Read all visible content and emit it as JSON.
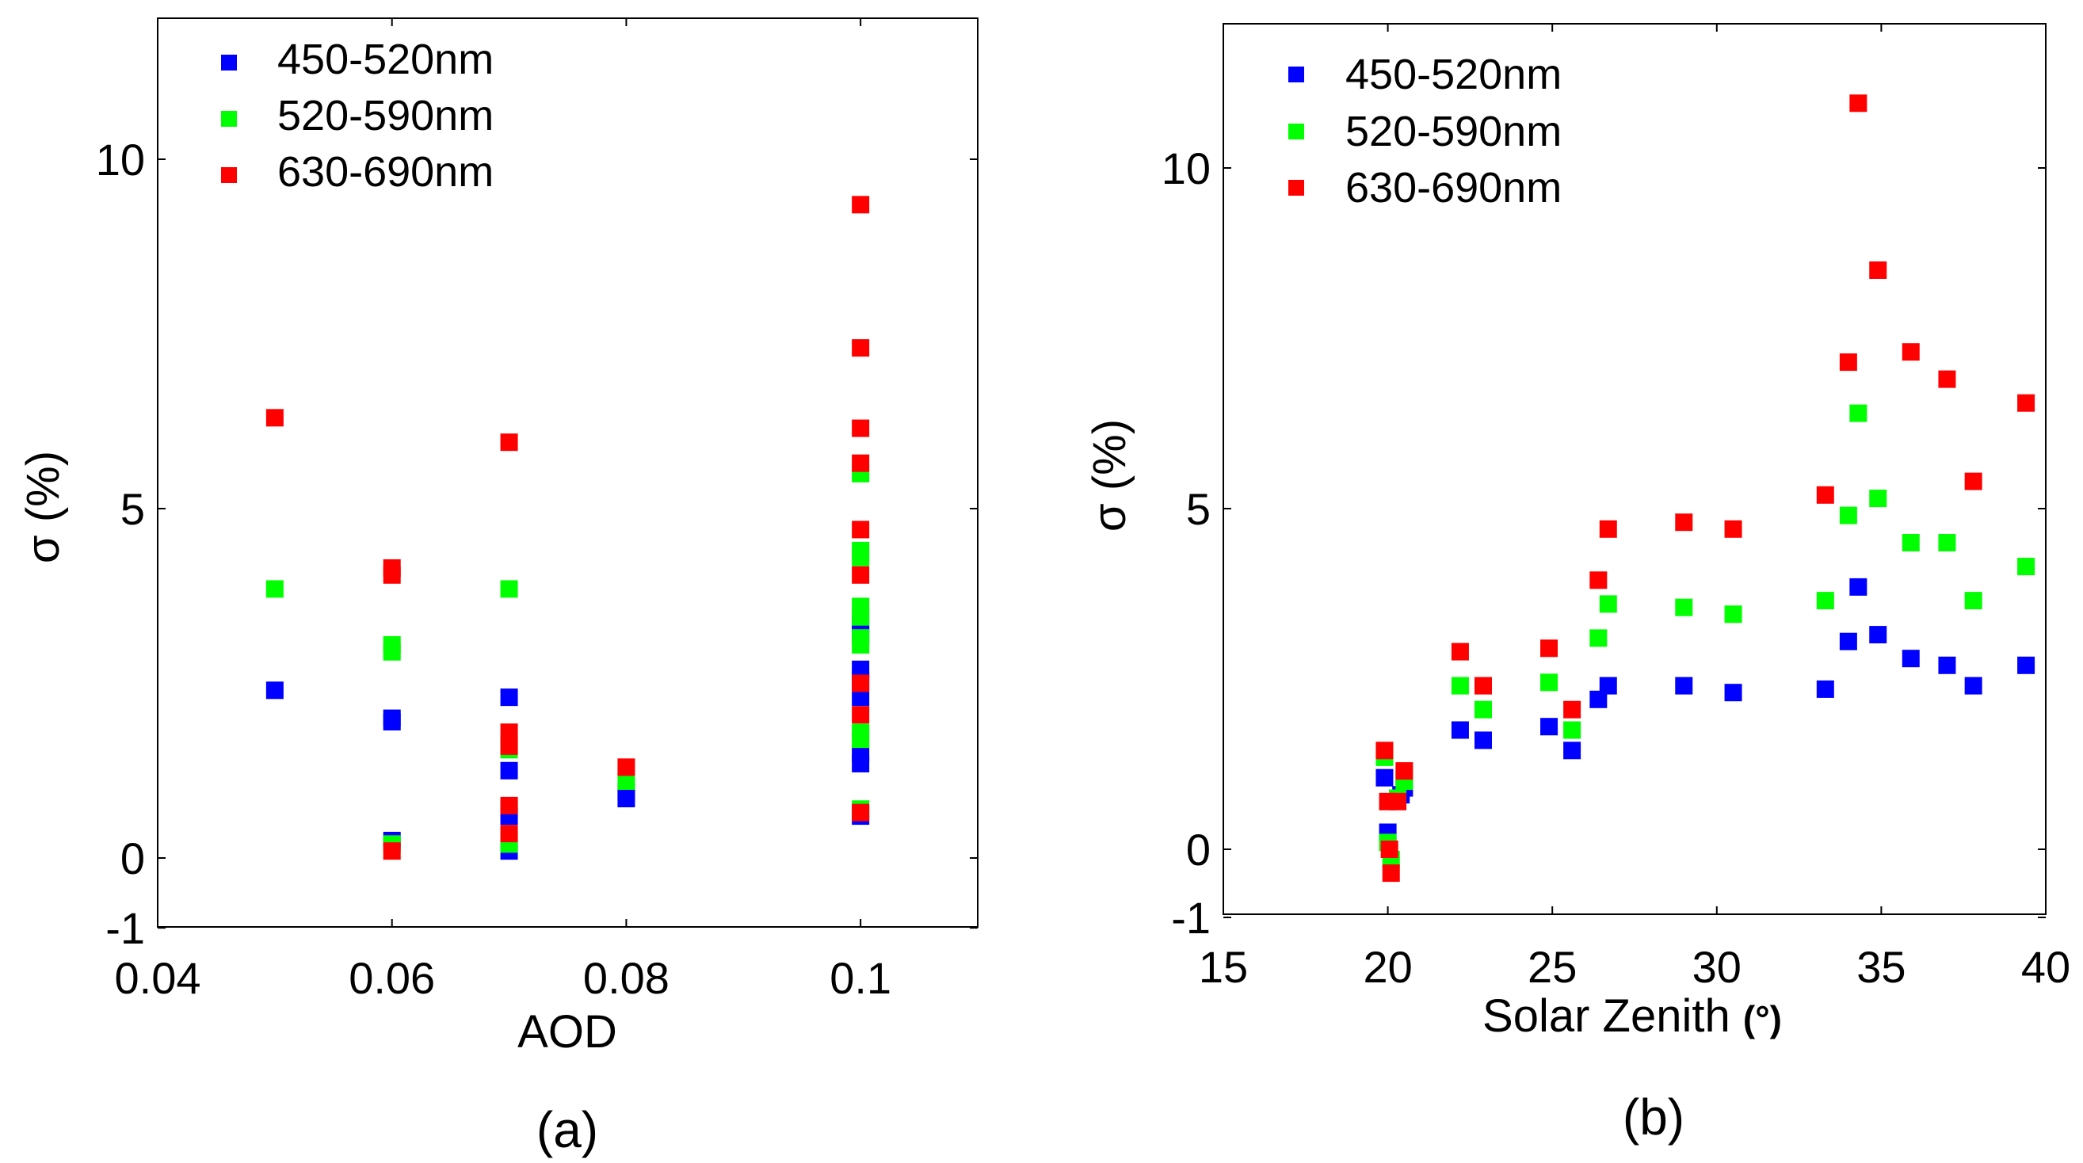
{
  "chart_data": [
    {
      "type": "scatter",
      "panel_label": "(a)",
      "title": "",
      "xlabel": "AOD",
      "ylabel": "σ (%)",
      "xlim": [
        0.04,
        0.11
      ],
      "ylim": [
        -1,
        12
      ],
      "xticks": [
        0.04,
        0.06,
        0.08,
        0.1
      ],
      "xtick_labels": [
        "0.04",
        "0.06",
        "0.08",
        "0.1"
      ],
      "yticks": [
        -1,
        0,
        5,
        10
      ],
      "ytick_labels": [
        "-1",
        "0",
        "5",
        "10"
      ],
      "grid": false,
      "legend_position": "top-left",
      "series": [
        {
          "name": "450-520nm",
          "color": "#0000ff",
          "points": [
            [
              0.05,
              2.4
            ],
            [
              0.06,
              2.0
            ],
            [
              0.06,
              1.95
            ],
            [
              0.06,
              0.25
            ],
            [
              0.07,
              2.3
            ],
            [
              0.07,
              1.25
            ],
            [
              0.07,
              0.7
            ],
            [
              0.07,
              0.6
            ],
            [
              0.07,
              0.1
            ],
            [
              0.08,
              0.85
            ],
            [
              0.08,
              0.95
            ],
            [
              0.1,
              3.35
            ],
            [
              0.1,
              3.2
            ],
            [
              0.1,
              2.7
            ],
            [
              0.1,
              2.55
            ],
            [
              0.1,
              2.3
            ],
            [
              0.1,
              1.5
            ],
            [
              0.1,
              1.35
            ],
            [
              0.1,
              0.6
            ]
          ]
        },
        {
          "name": "520-590nm",
          "color": "#00ff00",
          "points": [
            [
              0.05,
              3.85
            ],
            [
              0.06,
              3.05
            ],
            [
              0.06,
              2.95
            ],
            [
              0.06,
              0.2
            ],
            [
              0.07,
              3.85
            ],
            [
              0.07,
              1.55
            ],
            [
              0.07,
              0.2
            ],
            [
              0.08,
              1.1
            ],
            [
              0.1,
              5.5
            ],
            [
              0.1,
              4.4
            ],
            [
              0.1,
              4.3
            ],
            [
              0.1,
              3.6
            ],
            [
              0.1,
              3.45
            ],
            [
              0.1,
              3.15
            ],
            [
              0.1,
              3.05
            ],
            [
              0.1,
              1.8
            ],
            [
              0.1,
              1.7
            ],
            [
              0.1,
              0.7
            ]
          ]
        },
        {
          "name": "630-690nm",
          "color": "#ff0000",
          "points": [
            [
              0.05,
              6.3
            ],
            [
              0.06,
              4.15
            ],
            [
              0.06,
              4.05
            ],
            [
              0.06,
              0.1
            ],
            [
              0.07,
              5.95
            ],
            [
              0.07,
              1.8
            ],
            [
              0.07,
              1.6
            ],
            [
              0.07,
              0.75
            ],
            [
              0.07,
              0.35
            ],
            [
              0.08,
              1.3
            ],
            [
              0.1,
              9.35
            ],
            [
              0.1,
              7.3
            ],
            [
              0.1,
              6.15
            ],
            [
              0.1,
              5.65
            ],
            [
              0.1,
              4.7
            ],
            [
              0.1,
              4.05
            ],
            [
              0.1,
              2.5
            ],
            [
              0.1,
              2.05
            ],
            [
              0.1,
              0.65
            ]
          ]
        }
      ]
    },
    {
      "type": "scatter",
      "panel_label": "(b)",
      "title": "",
      "xlabel": "Solar Zenith",
      "xlabel_unit": "(°)",
      "ylabel": "σ (%)",
      "xlim": [
        15,
        40
      ],
      "ylim": [
        -1,
        12
      ],
      "xticks": [
        15,
        20,
        25,
        30,
        35,
        40
      ],
      "xtick_labels": [
        "15",
        "20",
        "25",
        "30",
        "35",
        "40"
      ],
      "yticks": [
        -1,
        0,
        5,
        10
      ],
      "ytick_labels": [
        "-1",
        "0",
        "5",
        "10"
      ],
      "grid": false,
      "legend_position": "top-left",
      "series": [
        {
          "name": "450-520nm",
          "color": "#0000ff",
          "points": [
            [
              19.9,
              1.05
            ],
            [
              20.0,
              0.25
            ],
            [
              20.4,
              0.8
            ],
            [
              20.5,
              0.9
            ],
            [
              22.2,
              1.75
            ],
            [
              22.9,
              1.6
            ],
            [
              24.9,
              1.8
            ],
            [
              25.6,
              1.45
            ],
            [
              26.4,
              2.2
            ],
            [
              26.7,
              2.4
            ],
            [
              29.0,
              2.4
            ],
            [
              30.5,
              2.3
            ],
            [
              33.3,
              2.35
            ],
            [
              34.0,
              3.05
            ],
            [
              34.3,
              3.85
            ],
            [
              34.9,
              3.15
            ],
            [
              35.9,
              2.8
            ],
            [
              37.0,
              2.7
            ],
            [
              37.8,
              2.4
            ],
            [
              39.4,
              2.7
            ]
          ]
        },
        {
          "name": "520-590nm",
          "color": "#00ff00",
          "points": [
            [
              19.9,
              1.35
            ],
            [
              20.0,
              0.1
            ],
            [
              20.1,
              -0.15
            ],
            [
              20.3,
              0.75
            ],
            [
              20.5,
              1.0
            ],
            [
              22.2,
              2.4
            ],
            [
              22.9,
              2.05
            ],
            [
              24.9,
              2.45
            ],
            [
              25.6,
              1.75
            ],
            [
              26.4,
              3.1
            ],
            [
              26.7,
              3.6
            ],
            [
              29.0,
              3.55
            ],
            [
              30.5,
              3.45
            ],
            [
              33.3,
              3.65
            ],
            [
              34.0,
              4.9
            ],
            [
              34.3,
              6.4
            ],
            [
              34.9,
              5.15
            ],
            [
              35.9,
              4.5
            ],
            [
              37.0,
              4.5
            ],
            [
              37.8,
              3.65
            ],
            [
              39.4,
              4.15
            ]
          ]
        },
        {
          "name": "630-690nm",
          "color": "#ff0000",
          "points": [
            [
              19.9,
              1.45
            ],
            [
              20.0,
              0.7
            ],
            [
              20.05,
              0.0
            ],
            [
              20.1,
              -0.35
            ],
            [
              20.3,
              0.7
            ],
            [
              20.5,
              1.15
            ],
            [
              22.2,
              2.9
            ],
            [
              22.9,
              2.4
            ],
            [
              24.9,
              2.95
            ],
            [
              25.6,
              2.05
            ],
            [
              26.4,
              3.95
            ],
            [
              26.7,
              4.7
            ],
            [
              29.0,
              4.8
            ],
            [
              30.5,
              4.7
            ],
            [
              33.3,
              5.2
            ],
            [
              34.0,
              7.15
            ],
            [
              34.3,
              10.95
            ],
            [
              34.9,
              8.5
            ],
            [
              35.9,
              7.3
            ],
            [
              37.0,
              6.9
            ],
            [
              37.8,
              5.4
            ],
            [
              39.4,
              6.55
            ]
          ]
        }
      ]
    }
  ]
}
